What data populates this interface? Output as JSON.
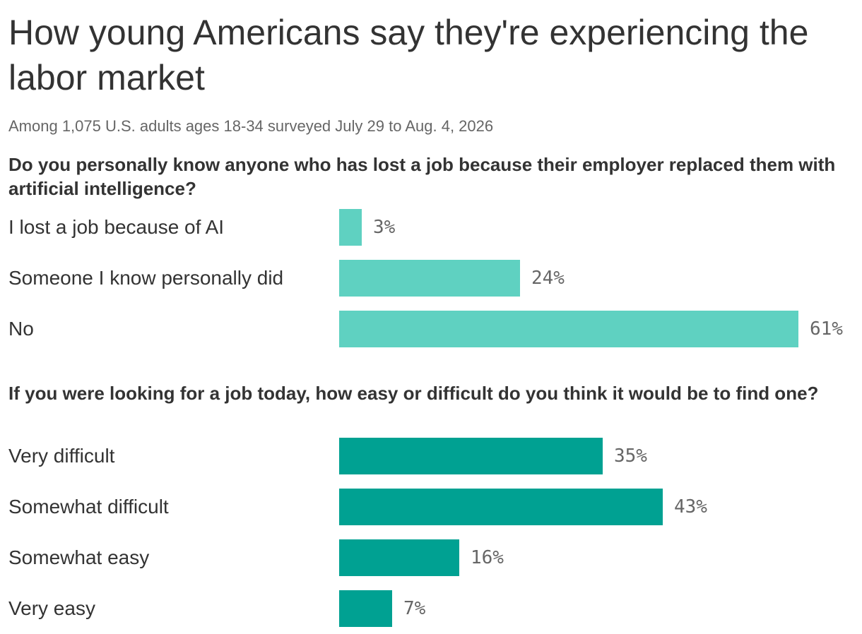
{
  "title": "How young Americans say they're experiencing the labor market",
  "subtitle": "Among 1,075 U.S. adults ages 18-34 surveyed July 29 to Aug. 4, 2026",
  "colors": {
    "section1": "#5fd1c1",
    "section2": "#00a192"
  },
  "chart_data": [
    {
      "type": "bar",
      "orientation": "horizontal",
      "title": "Do you personally know anyone who has lost a job because their employer replaced them with artificial intelligence?",
      "categories": [
        "I lost a job because of AI",
        "Someone I know personally did",
        "No"
      ],
      "values": [
        3,
        24,
        61
      ],
      "value_labels": [
        "3%",
        "24%",
        "61%"
      ],
      "color": "#5fd1c1",
      "xlim": [
        0,
        61
      ]
    },
    {
      "type": "bar",
      "orientation": "horizontal",
      "title": "If you were looking for a job today, how easy or difficult do you think it would be to find one?",
      "categories": [
        "Very difficult",
        "Somewhat difficult",
        "Somewhat easy",
        "Very easy"
      ],
      "values": [
        35,
        43,
        16,
        7
      ],
      "value_labels": [
        "35%",
        "43%",
        "16%",
        "7%"
      ],
      "color": "#00a192",
      "xlim": [
        0,
        61
      ]
    }
  ]
}
